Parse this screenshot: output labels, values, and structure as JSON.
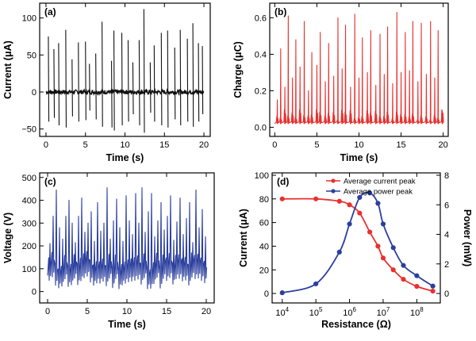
{
  "colors": {
    "current_black": "#111111",
    "charge_red": "#e8312f",
    "voltage_blue": "#2b3f9e",
    "current_axis_red": "#e8312f",
    "power_axis_blue": "#2b3f9e"
  },
  "chart_data": [
    {
      "panel": "(a)",
      "type": "line",
      "xlabel": "Time (s)",
      "ylabel": "Current (μA)",
      "xlim": [
        -0.8,
        20.8
      ],
      "ylim": [
        -60,
        120
      ],
      "xticks": [
        0,
        5,
        10,
        15,
        20
      ],
      "yticks": [
        -50,
        0,
        50,
        100
      ],
      "grid": false,
      "series": [
        {
          "color": "#111111",
          "baseline": 0,
          "peaks": [
            {
              "t": 0.3,
              "pos": 75,
              "neg": -40
            },
            {
              "t": 1.0,
              "pos": 58,
              "neg": -35
            },
            {
              "t": 1.6,
              "pos": 66,
              "neg": -45
            },
            {
              "t": 2.5,
              "pos": 84,
              "neg": -48
            },
            {
              "t": 3.3,
              "pos": 44,
              "neg": -33
            },
            {
              "t": 4.1,
              "pos": 67,
              "neg": -40
            },
            {
              "t": 5.0,
              "pos": 68,
              "neg": -38
            },
            {
              "t": 5.5,
              "pos": 38,
              "neg": -25
            },
            {
              "t": 6.3,
              "pos": 52,
              "neg": -37
            },
            {
              "t": 7.1,
              "pos": 95,
              "neg": -47
            },
            {
              "t": 8.3,
              "pos": 42,
              "neg": -48
            },
            {
              "t": 8.6,
              "pos": 83,
              "neg": -52
            },
            {
              "t": 9.6,
              "pos": 80,
              "neg": -45
            },
            {
              "t": 10.4,
              "pos": 70,
              "neg": -40
            },
            {
              "t": 11.0,
              "pos": 40,
              "neg": -30
            },
            {
              "t": 11.8,
              "pos": 70,
              "neg": -45
            },
            {
              "t": 12.4,
              "pos": 112,
              "neg": -55
            },
            {
              "t": 13.2,
              "pos": 40,
              "neg": -28
            },
            {
              "t": 13.7,
              "pos": 63,
              "neg": -40
            },
            {
              "t": 14.6,
              "pos": 80,
              "neg": -45
            },
            {
              "t": 15.4,
              "pos": 83,
              "neg": -48
            },
            {
              "t": 16.3,
              "pos": 60,
              "neg": -37
            },
            {
              "t": 17.0,
              "pos": 84,
              "neg": -45
            },
            {
              "t": 17.9,
              "pos": 72,
              "neg": -40
            },
            {
              "t": 18.6,
              "pos": 93,
              "neg": -47
            },
            {
              "t": 19.3,
              "pos": 66,
              "neg": -40
            },
            {
              "t": 19.8,
              "pos": 62,
              "neg": -30
            }
          ]
        }
      ]
    },
    {
      "panel": "(b)",
      "type": "line",
      "xlabel": "Time (s)",
      "ylabel": "Charge (μC)",
      "xlim": [
        -0.6,
        20.6
      ],
      "ylim": [
        -0.05,
        0.68
      ],
      "xticks": [
        0,
        5,
        10,
        15,
        20
      ],
      "yticks": [
        0.0,
        0.2,
        0.4,
        0.6
      ],
      "grid": false,
      "series": [
        {
          "color": "#e8312f",
          "baseline": 0.02,
          "peaks": [
            {
              "t": 0.3,
              "v": 0.15
            },
            {
              "t": 0.7,
              "v": 0.43
            },
            {
              "t": 1.2,
              "v": 0.22
            },
            {
              "t": 1.6,
              "v": 0.61
            },
            {
              "t": 2.1,
              "v": 0.27
            },
            {
              "t": 2.5,
              "v": 0.48
            },
            {
              "t": 3.0,
              "v": 0.33
            },
            {
              "t": 3.5,
              "v": 0.58
            },
            {
              "t": 4.0,
              "v": 0.2
            },
            {
              "t": 4.4,
              "v": 0.41
            },
            {
              "t": 5.0,
              "v": 0.34
            },
            {
              "t": 5.4,
              "v": 0.52
            },
            {
              "t": 6.0,
              "v": 0.25
            },
            {
              "t": 6.4,
              "v": 0.46
            },
            {
              "t": 7.0,
              "v": 0.28
            },
            {
              "t": 7.5,
              "v": 0.6
            },
            {
              "t": 8.0,
              "v": 0.32
            },
            {
              "t": 8.4,
              "v": 0.56
            },
            {
              "t": 9.0,
              "v": 0.22
            },
            {
              "t": 9.5,
              "v": 0.62
            },
            {
              "t": 10.0,
              "v": 0.27
            },
            {
              "t": 10.4,
              "v": 0.49
            },
            {
              "t": 11.0,
              "v": 0.3
            },
            {
              "t": 11.4,
              "v": 0.53
            },
            {
              "t": 12.0,
              "v": 0.23
            },
            {
              "t": 12.5,
              "v": 0.51
            },
            {
              "t": 13.0,
              "v": 0.29
            },
            {
              "t": 13.4,
              "v": 0.55
            },
            {
              "t": 14.0,
              "v": 0.24
            },
            {
              "t": 14.5,
              "v": 0.63
            },
            {
              "t": 15.0,
              "v": 0.3
            },
            {
              "t": 15.5,
              "v": 0.52
            },
            {
              "t": 16.0,
              "v": 0.31
            },
            {
              "t": 16.4,
              "v": 0.58
            },
            {
              "t": 17.0,
              "v": 0.25
            },
            {
              "t": 17.4,
              "v": 0.57
            },
            {
              "t": 18.0,
              "v": 0.29
            },
            {
              "t": 18.5,
              "v": 0.58
            },
            {
              "t": 19.0,
              "v": 0.27
            },
            {
              "t": 19.4,
              "v": 0.53
            },
            {
              "t": 19.9,
              "v": 0.09
            }
          ]
        }
      ]
    },
    {
      "panel": "(c)",
      "type": "line",
      "xlabel": "Time (s)",
      "ylabel": "Voltage (V)",
      "xlim": [
        -1,
        21
      ],
      "ylim": [
        -50,
        520
      ],
      "xticks": [
        0,
        5,
        10,
        15,
        20
      ],
      "yticks": [
        0,
        100,
        200,
        300,
        400,
        500
      ],
      "grid": false,
      "series": [
        {
          "color": "#2b3f9e",
          "baseline": 70,
          "peaks": [
            {
              "t": 0.3,
              "v": 210
            },
            {
              "t": 0.7,
              "v": 330
            },
            {
              "t": 1.1,
              "v": 445
            },
            {
              "t": 1.5,
              "v": 280
            },
            {
              "t": 1.9,
              "v": 230
            },
            {
              "t": 2.3,
              "v": 330
            },
            {
              "t": 2.7,
              "v": 400
            },
            {
              "t": 3.1,
              "v": 300
            },
            {
              "t": 3.5,
              "v": 215
            },
            {
              "t": 3.9,
              "v": 330
            },
            {
              "t": 4.3,
              "v": 410
            },
            {
              "t": 4.7,
              "v": 260
            },
            {
              "t": 5.1,
              "v": 300
            },
            {
              "t": 5.5,
              "v": 350
            },
            {
              "t": 5.9,
              "v": 220
            },
            {
              "t": 6.3,
              "v": 390
            },
            {
              "t": 6.7,
              "v": 265
            },
            {
              "t": 7.1,
              "v": 300
            },
            {
              "t": 7.5,
              "v": 455
            },
            {
              "t": 7.9,
              "v": 230
            },
            {
              "t": 8.3,
              "v": 310
            },
            {
              "t": 8.7,
              "v": 405
            },
            {
              "t": 9.1,
              "v": 280
            },
            {
              "t": 9.5,
              "v": 220
            },
            {
              "t": 9.9,
              "v": 420
            },
            {
              "t": 10.3,
              "v": 310
            },
            {
              "t": 10.7,
              "v": 250
            },
            {
              "t": 11.1,
              "v": 430
            },
            {
              "t": 11.5,
              "v": 300
            },
            {
              "t": 11.9,
              "v": 455
            },
            {
              "t": 12.3,
              "v": 260
            },
            {
              "t": 12.7,
              "v": 350
            },
            {
              "t": 13.1,
              "v": 430
            },
            {
              "t": 13.5,
              "v": 240
            },
            {
              "t": 13.9,
              "v": 310
            },
            {
              "t": 14.3,
              "v": 390
            },
            {
              "t": 14.7,
              "v": 270
            },
            {
              "t": 15.1,
              "v": 330
            },
            {
              "t": 15.5,
              "v": 420
            },
            {
              "t": 15.9,
              "v": 225
            },
            {
              "t": 16.3,
              "v": 305
            },
            {
              "t": 16.7,
              "v": 410
            },
            {
              "t": 17.1,
              "v": 250
            },
            {
              "t": 17.5,
              "v": 320
            },
            {
              "t": 17.9,
              "v": 390
            },
            {
              "t": 18.3,
              "v": 215
            },
            {
              "t": 18.7,
              "v": 445
            },
            {
              "t": 19.1,
              "v": 280
            },
            {
              "t": 19.5,
              "v": 360
            },
            {
              "t": 19.9,
              "v": 240
            }
          ]
        }
      ]
    },
    {
      "panel": "(d)",
      "type": "scatter",
      "xlabel": "Resistance (Ω)",
      "ylabel": "Current (μA)",
      "y2label": "Power (mW)",
      "xscale": "log",
      "xlim": [
        5000,
        500000000
      ],
      "ylim": [
        -8,
        102
      ],
      "y2lim": [
        -0.64,
        8.16
      ],
      "xticks": [
        10000,
        100000,
        1000000,
        10000000,
        100000000
      ],
      "xticklabels": [
        {
          "base": "10",
          "exp": "4"
        },
        {
          "base": "10",
          "exp": "5"
        },
        {
          "base": "10",
          "exp": "6"
        },
        {
          "base": "10",
          "exp": "7"
        },
        {
          "base": "10",
          "exp": "8"
        }
      ],
      "yticks": [
        0,
        20,
        40,
        60,
        80,
        100
      ],
      "y2ticks": [
        0,
        2,
        4,
        6,
        8
      ],
      "legend_position": "top-right",
      "grid": false,
      "series": [
        {
          "name": "Average current peak",
          "axis": "left",
          "color": "#e8312f",
          "x": [
            10000,
            100000,
            500000,
            1000000,
            2000000,
            4000000,
            7000000,
            10000000,
            20000000,
            40000000,
            100000000,
            300000000
          ],
          "y": [
            80,
            80,
            78,
            75,
            68,
            52,
            40,
            30,
            20,
            12,
            6,
            2
          ]
        },
        {
          "name": "Average power peak",
          "axis": "right",
          "color": "#2b3f9e",
          "x": [
            10000,
            100000,
            500000,
            1000000,
            2000000,
            4000000,
            7000000,
            10000000,
            20000000,
            40000000,
            100000000,
            300000000
          ],
          "y": [
            0.05,
            0.65,
            2.8,
            4.7,
            6.5,
            6.8,
            6.1,
            4.7,
            3.1,
            1.9,
            1.2,
            0.5
          ]
        }
      ]
    }
  ]
}
